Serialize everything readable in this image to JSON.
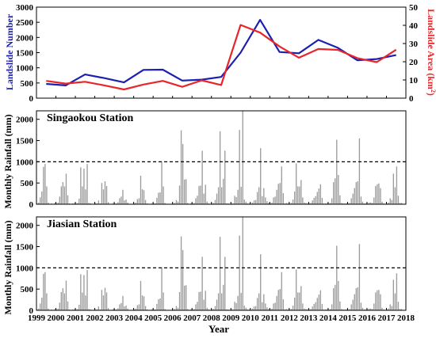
{
  "colors": {
    "number_line": "#1d1fb0",
    "area_line": "#e8262a",
    "bars": "#9b9b9b",
    "axis": "#000000"
  },
  "chart_data": [
    {
      "type": "line",
      "x": [
        1999,
        2000,
        2001,
        2002,
        2003,
        2004,
        2005,
        2006,
        2007,
        2008,
        2009,
        2010,
        2011,
        2012,
        2013,
        2014,
        2015,
        2016,
        2017
      ],
      "xlim": [
        1999,
        2018
      ],
      "series": [
        {
          "name": "Landslide Number",
          "axis": "left",
          "values": [
            470,
            420,
            780,
            660,
            520,
            930,
            940,
            580,
            610,
            700,
            1500,
            2580,
            1520,
            1480,
            1920,
            1660,
            1250,
            1290,
            1420
          ]
        },
        {
          "name": "Landslide Area",
          "axis": "right",
          "values": [
            9.5,
            8,
            9,
            7,
            4.8,
            7.5,
            9.5,
            6.2,
            9.8,
            7.2,
            40.2,
            36,
            28.4,
            22.2,
            27,
            26.5,
            22,
            19.8,
            26.6
          ]
        }
      ],
      "ylabel": "Landslide Number",
      "ylim": [
        0,
        3000
      ],
      "yticks": [
        0,
        500,
        1000,
        1500,
        2000,
        2500,
        3000
      ],
      "y2label": "Landslide Area (km²)",
      "y2lim": [
        0,
        50
      ],
      "y2ticks": [
        0,
        10,
        20,
        30,
        40,
        50
      ],
      "grid": false
    },
    {
      "type": "bar",
      "title": "Singaokou Station",
      "ylabel": "Monthly Rainfall (mm)",
      "ylim": [
        0,
        2200
      ],
      "yticks": [
        0,
        500,
        1000,
        1500,
        2000
      ],
      "reference_line": 1000,
      "x_start": 1999,
      "years": [
        [
          20,
          40,
          160,
          300,
          880,
          950,
          420,
          40,
          10,
          20,
          10,
          30
        ],
        [
          20,
          40,
          180,
          420,
          520,
          420,
          720,
          210,
          20,
          10,
          20,
          20
        ],
        [
          20,
          30,
          130,
          870,
          420,
          840,
          350,
          950,
          30,
          20,
          10,
          10
        ],
        [
          20,
          20,
          90,
          20,
          500,
          350,
          540,
          430,
          50,
          10,
          10,
          20
        ],
        [
          20,
          20,
          50,
          140,
          180,
          340,
          90,
          110,
          40,
          10,
          10,
          10
        ],
        [
          20,
          40,
          120,
          140,
          670,
          350,
          330,
          100,
          20,
          10,
          10,
          20
        ],
        [
          20,
          20,
          150,
          270,
          280,
          1000,
          420,
          30,
          10,
          10,
          10,
          10
        ],
        [
          20,
          30,
          100,
          60,
          440,
          1740,
          1420,
          580,
          590,
          30,
          10,
          20
        ],
        [
          20,
          30,
          140,
          200,
          430,
          440,
          1260,
          250,
          460,
          60,
          20,
          10
        ],
        [
          20,
          30,
          100,
          250,
          400,
          1720,
          400,
          600,
          1260,
          20,
          20,
          10
        ],
        [
          20,
          20,
          200,
          170,
          340,
          1750,
          410,
          2200,
          110,
          60,
          20,
          20
        ],
        [
          10,
          40,
          90,
          100,
          290,
          400,
          1320,
          190,
          380,
          160,
          70,
          30
        ],
        [
          20,
          40,
          160,
          180,
          340,
          480,
          500,
          890,
          260,
          20,
          30,
          20
        ],
        [
          20,
          30,
          110,
          300,
          960,
          420,
          420,
          570,
          160,
          40,
          30,
          20
        ],
        [
          20,
          30,
          90,
          150,
          190,
          290,
          370,
          470,
          150,
          20,
          20,
          20
        ],
        [
          20,
          30,
          140,
          520,
          610,
          1520,
          690,
          210,
          30,
          20,
          20,
          20
        ],
        [
          20,
          30,
          140,
          250,
          380,
          520,
          540,
          1550,
          180,
          60,
          20,
          20
        ],
        [
          20,
          40,
          40,
          30,
          160,
          430,
          470,
          490,
          380,
          60,
          20,
          10
        ],
        [
          20,
          40,
          140,
          100,
          720,
          400,
          890,
          200,
          30,
          30,
          10,
          10
        ],
        [
          20,
          40,
          130,
          240,
          880,
          650,
          350,
          1570,
          40,
          20,
          10,
          10
        ],
        [
          20,
          20,
          120,
          80,
          790,
          290,
          800,
          160,
          90,
          20,
          20,
          10
        ]
      ],
      "xtick_labels": [
        "1999",
        "2000",
        "2001",
        "2002",
        "2003",
        "2004",
        "2005",
        "2006",
        "2007",
        "2008",
        "2009",
        "2010",
        "2011",
        "2012",
        "2013",
        "2014",
        "2015",
        "2016",
        "2017",
        "2018"
      ]
    },
    {
      "type": "bar",
      "title": "Jiasian Station",
      "ylabel": "Monthly Rainfall (mm)",
      "xlabel": "Year",
      "ylim": [
        0,
        2200
      ],
      "yticks": [
        0,
        500,
        1000,
        1500,
        2000
      ],
      "reference_line": 1000,
      "x_start": 1999,
      "years": [
        [
          20,
          40,
          160,
          300,
          860,
          900,
          400,
          40,
          10,
          20,
          10,
          30
        ],
        [
          20,
          40,
          180,
          430,
          520,
          400,
          700,
          210,
          20,
          10,
          20,
          20
        ],
        [
          20,
          30,
          130,
          850,
          420,
          830,
          350,
          950,
          30,
          20,
          10,
          10
        ],
        [
          20,
          20,
          90,
          20,
          480,
          350,
          530,
          420,
          50,
          10,
          10,
          20
        ],
        [
          20,
          20,
          50,
          140,
          170,
          340,
          90,
          110,
          40,
          10,
          10,
          10
        ],
        [
          20,
          40,
          120,
          140,
          690,
          350,
          330,
          100,
          20,
          10,
          10,
          20
        ],
        [
          20,
          20,
          150,
          260,
          280,
          1010,
          420,
          30,
          10,
          10,
          10,
          10
        ],
        [
          20,
          30,
          100,
          60,
          430,
          1740,
          1420,
          580,
          590,
          30,
          10,
          20
        ],
        [
          20,
          30,
          140,
          200,
          430,
          440,
          1260,
          250,
          460,
          60,
          20,
          10
        ],
        [
          20,
          30,
          100,
          250,
          400,
          1730,
          400,
          600,
          1260,
          20,
          20,
          10
        ],
        [
          20,
          20,
          200,
          170,
          340,
          1760,
          410,
          2200,
          110,
          60,
          20,
          20
        ],
        [
          10,
          40,
          90,
          100,
          290,
          400,
          1320,
          190,
          380,
          160,
          70,
          30
        ],
        [
          20,
          40,
          160,
          180,
          340,
          480,
          500,
          900,
          260,
          20,
          30,
          20
        ],
        [
          20,
          30,
          110,
          300,
          960,
          420,
          420,
          570,
          160,
          40,
          30,
          20
        ],
        [
          20,
          30,
          90,
          150,
          190,
          290,
          370,
          470,
          150,
          20,
          20,
          20
        ],
        [
          20,
          30,
          140,
          520,
          600,
          1520,
          690,
          210,
          30,
          20,
          20,
          20
        ],
        [
          20,
          30,
          140,
          250,
          380,
          520,
          540,
          1560,
          180,
          60,
          20,
          20
        ],
        [
          20,
          40,
          40,
          30,
          160,
          420,
          470,
          480,
          380,
          60,
          20,
          10
        ],
        [
          20,
          40,
          140,
          100,
          720,
          400,
          870,
          200,
          30,
          30,
          10,
          10
        ],
        [
          20,
          40,
          130,
          240,
          860,
          640,
          350,
          1570,
          40,
          20,
          10,
          10
        ],
        [
          20,
          20,
          120,
          80,
          790,
          290,
          800,
          160,
          90,
          20,
          20,
          10
        ]
      ],
      "xtick_labels": [
        "1999",
        "2000",
        "2001",
        "2002",
        "2003",
        "2004",
        "2005",
        "2006",
        "2007",
        "2008",
        "2009",
        "2010",
        "2011",
        "2012",
        "2013",
        "2014",
        "2015",
        "2016",
        "2017",
        "2018"
      ]
    }
  ]
}
